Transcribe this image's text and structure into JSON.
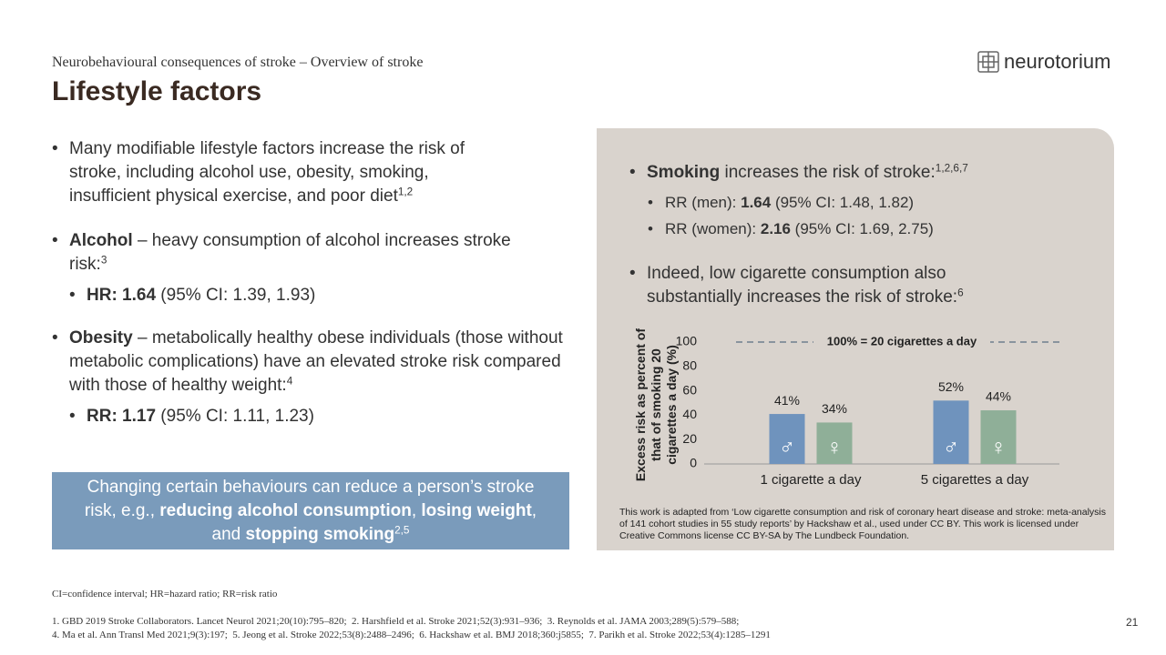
{
  "header": {
    "subtitle": "Neurobehavioural consequences of stroke – Overview of stroke",
    "title": "Lifestyle factors"
  },
  "logo": "neurotorium",
  "bullets": [
    {
      "runs": [
        "Many modifiable lifestyle factors increase the risk of stroke, including alcohol use, obesity, smoking, insufficient physical exercise, and poor diet",
        "1,2"
      ]
    },
    {
      "runs": [
        "Alcohol",
        " – heavy consumption of alcohol increases stroke risk:",
        "3"
      ],
      "sub": [
        "HR: 1.64",
        " (95% CI: 1.39, 1.93)"
      ]
    },
    {
      "runs": [
        "Obesity",
        " – metabolically healthy obese individuals (those without metabolic complications) have an elevated stroke risk compared with those of healthy weight:",
        "4"
      ],
      "sub": [
        "RR: 1.17",
        " (95% CI: 1.11, 1.23)"
      ]
    }
  ],
  "callout": [
    "Changing certain behaviours can reduce a person’s stroke risk, e.g., ",
    "reducing alcohol consumption",
    ", ",
    "losing weight",
    ", and ",
    "stopping smoking",
    "2,5"
  ],
  "panel": {
    "bullets": [
      {
        "runs": [
          "Smoking",
          " increases the risk of stroke:",
          "1,2,6,7"
        ],
        "sub": [
          [
            "RR (men): ",
            "1.64",
            " (95% CI: 1.48, 1.82)"
          ],
          [
            "RR (women): ",
            "2.16",
            " (95% CI: 1.69, 2.75)"
          ]
        ]
      },
      {
        "runs": [
          "Indeed, low cigarette consumption also substantially increases the risk of stroke:",
          "6"
        ]
      }
    ],
    "credit": "This work is adapted from ‘Low cigarette consumption and risk of coronary heart disease and stroke: meta-analysis of 141 cohort studies in 55 study reports’ by Hackshaw et al., used under CC BY. This work is licensed under Creative Commons license CC BY-SA by The Lundbeck Foundation."
  },
  "chart_data": {
    "type": "bar",
    "y_label": "Excess risk as percent of that of smoking 20 cigarettes a day (%)",
    "categories": [
      "1 cigarette a day",
      "5 cigarettes a day"
    ],
    "series": [
      {
        "name": "♂",
        "color": "#6f93bd",
        "values": [
          41,
          52
        ],
        "value_labels": [
          "41%",
          "52%"
        ]
      },
      {
        "name": "♀",
        "color": "#8faf98",
        "values": [
          34,
          44
        ],
        "value_labels": [
          "34%",
          "44%"
        ]
      }
    ],
    "reference_line": {
      "value": 100,
      "label": "100% = 20 cigarettes a day"
    },
    "ylim": [
      0,
      100
    ],
    "yticks": [
      0,
      20,
      40,
      60,
      80,
      100
    ]
  },
  "abbreviations": "CI=confidence interval; HR=hazard ratio; RR=risk ratio",
  "references": [
    "1. GBD 2019 Stroke Collaborators. Lancet Neurol 2021;20(10):795–820;  2. Harshfield et al. Stroke 2021;52(3):931–936;  3. Reynolds et al. JAMA 2003;289(5):579–588;",
    "4. Ma et al. Ann Transl Med 2021;9(3):197;  5. Jeong et al. Stroke 2022;53(8):2488–2496;  6. Hackshaw et al. BMJ 2018;360:j5855;  7. Parikh et al. Stroke 2022;53(4):1285–1291"
  ],
  "page_number": 21
}
